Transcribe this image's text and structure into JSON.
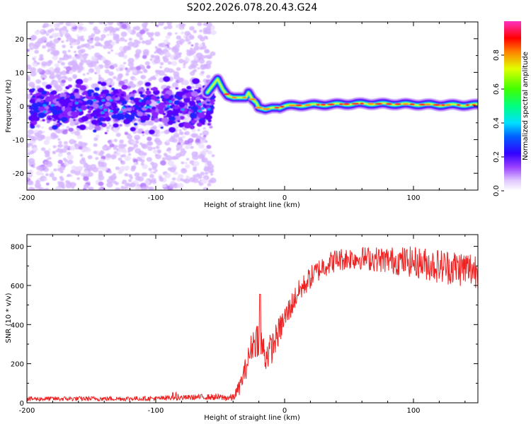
{
  "title": "S202.2026.078.20.43.G24",
  "chart_data": [
    {
      "type": "heatmap",
      "xlabel": "Height of straight line (km)",
      "ylabel": "Frequency (Hz)",
      "xlim": [
        -200,
        150
      ],
      "ylim": [
        -25,
        25
      ],
      "x_ticks": [
        -200,
        -100,
        0,
        100
      ],
      "x_tick_labels": [
        "-200",
        "-100",
        "0",
        "100"
      ],
      "y_ticks": [
        -20,
        -10,
        0,
        10,
        20
      ],
      "y_tick_labels": [
        "-20",
        "-10",
        "0",
        "10",
        "20"
      ],
      "colorbar": {
        "label": "Normalized spectral amplitude",
        "range": [
          0,
          1
        ],
        "ticks": [
          0.0,
          0.2,
          0.4,
          0.6,
          0.8
        ],
        "tick_labels": [
          "0.0",
          "0.2",
          "0.4",
          "0.6",
          "0.8"
        ],
        "colors": [
          "#ffffff",
          "#d8b0ff",
          "#8000ff",
          "#0000ff",
          "#00ffff",
          "#00ff00",
          "#ffff00",
          "#ff8000",
          "#ff0000",
          "#ff00ff"
        ]
      },
      "ridge": {
        "height_km": [
          -60,
          -52,
          -48,
          -44,
          -40,
          -35,
          -30,
          -28,
          -25,
          -22,
          -20,
          -15,
          -10,
          -5,
          0,
          10,
          20,
          40,
          60,
          80,
          100,
          120,
          150
        ],
        "frequency_hz": [
          4,
          8,
          5,
          3,
          2.5,
          2.5,
          2.5,
          4,
          2,
          1,
          -0.5,
          -1,
          -0.5,
          -0.5,
          0,
          0.2,
          0.3,
          0.5,
          0.7,
          0.6,
          0.5,
          0.3,
          0.3
        ]
      },
      "noise_region_km": [
        -200,
        -55
      ]
    },
    {
      "type": "line",
      "xlabel": "Height of straight line (km)",
      "ylabel": "SNR (10 * v/v)",
      "xlim": [
        -200,
        150
      ],
      "ylim": [
        0,
        860
      ],
      "x_ticks": [
        -200,
        -100,
        0,
        100
      ],
      "x_tick_labels": [
        "-200",
        "-100",
        "0",
        "100"
      ],
      "y_ticks": [
        0,
        200,
        400,
        600,
        800
      ],
      "y_tick_labels": [
        "0",
        "200",
        "400",
        "600",
        "800"
      ],
      "series": [
        {
          "name": "SNR",
          "color": "#ee2222",
          "x": [
            -200,
            -100,
            -60,
            -40,
            -35,
            -30,
            -25,
            -20,
            -15,
            -10,
            0,
            10,
            20,
            30,
            40,
            50,
            60,
            80,
            100,
            120,
            150
          ],
          "y": [
            20,
            22,
            30,
            25,
            80,
            180,
            300,
            340,
            240,
            280,
            430,
            560,
            640,
            700,
            730,
            740,
            740,
            730,
            720,
            700,
            680
          ],
          "noise_amplitude": [
            12,
            12,
            15,
            20,
            40,
            60,
            80,
            100,
            90,
            80,
            70,
            60,
            60,
            60,
            60,
            60,
            60,
            70,
            80,
            90,
            100
          ]
        }
      ],
      "peak": {
        "x": -19,
        "y": 555
      }
    }
  ]
}
